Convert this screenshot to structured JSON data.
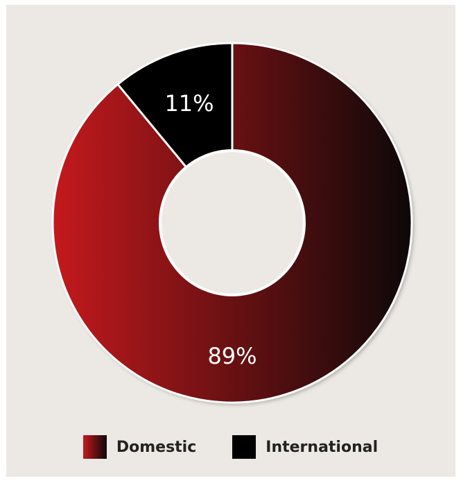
{
  "chart_data": {
    "type": "pie",
    "donut": true,
    "categories": [
      "Domestic",
      "International"
    ],
    "values": [
      89,
      11
    ],
    "labels": [
      "89%",
      "11%"
    ],
    "colors": {
      "Domestic": [
        "#c4191d",
        "#0d0808"
      ],
      "International": "#000000"
    },
    "background": "#ece9e4",
    "legend": {
      "placement": "bottom",
      "items": [
        {
          "label": "Domestic"
        },
        {
          "label": "International"
        }
      ]
    }
  }
}
